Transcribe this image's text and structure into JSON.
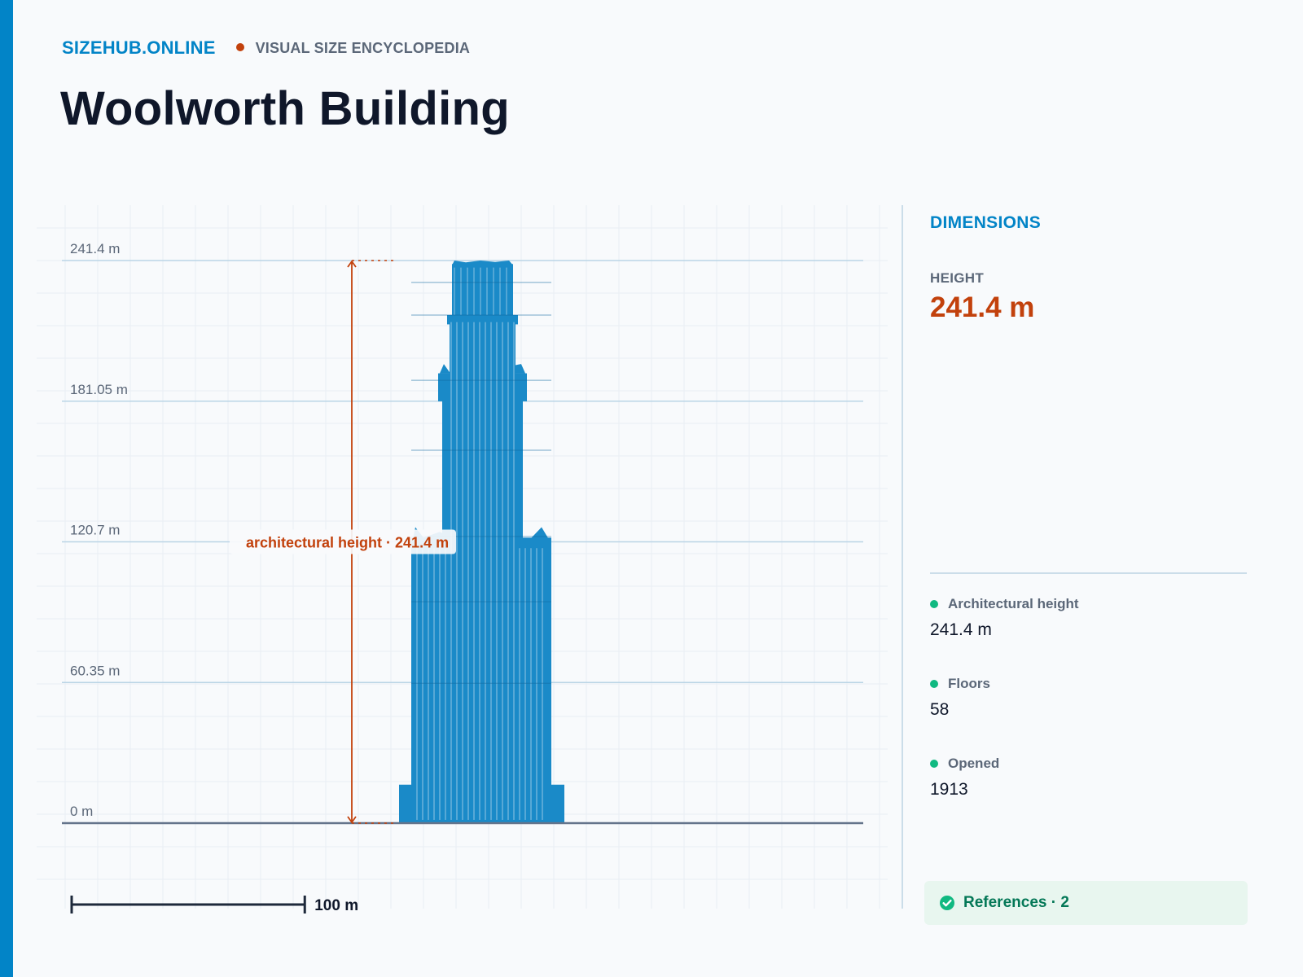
{
  "header": {
    "brand": "SIZEHUB.ONLINE",
    "tagline": "VISUAL SIZE ENCYCLOPEDIA"
  },
  "page": {
    "title": "Woolworth Building"
  },
  "colors": {
    "accent": "#0284c7",
    "highlight": "#c2410c",
    "building": "#1a8ac8",
    "positive": "#10b981"
  },
  "chart_data": {
    "type": "diagram",
    "subject": "Woolworth Building",
    "unit": "m",
    "ylim": [
      0,
      241.4
    ],
    "y_ticks": [
      {
        "value": 0,
        "label": "0 m"
      },
      {
        "value": 60.35,
        "label": "60.35 m"
      },
      {
        "value": 120.7,
        "label": "120.7 m"
      },
      {
        "value": 181.05,
        "label": "181.05 m"
      },
      {
        "value": 241.4,
        "label": "241.4 m"
      }
    ],
    "measurement": {
      "label": "architectural height · 241.4 m",
      "from": 0,
      "to": 241.4
    },
    "scale_bar": {
      "value": 100,
      "label": "100 m"
    },
    "grid": true
  },
  "panel": {
    "title": "DIMENSIONS",
    "hero": {
      "label": "HEIGHT",
      "value": "241.4 m"
    },
    "stats": [
      {
        "label": "Architectural height",
        "value": "241.4 m"
      },
      {
        "label": "Floors",
        "value": "58"
      },
      {
        "label": "Opened",
        "value": "1913"
      }
    ],
    "references": {
      "label": "References · 2",
      "icon": "check-circle-icon"
    }
  }
}
